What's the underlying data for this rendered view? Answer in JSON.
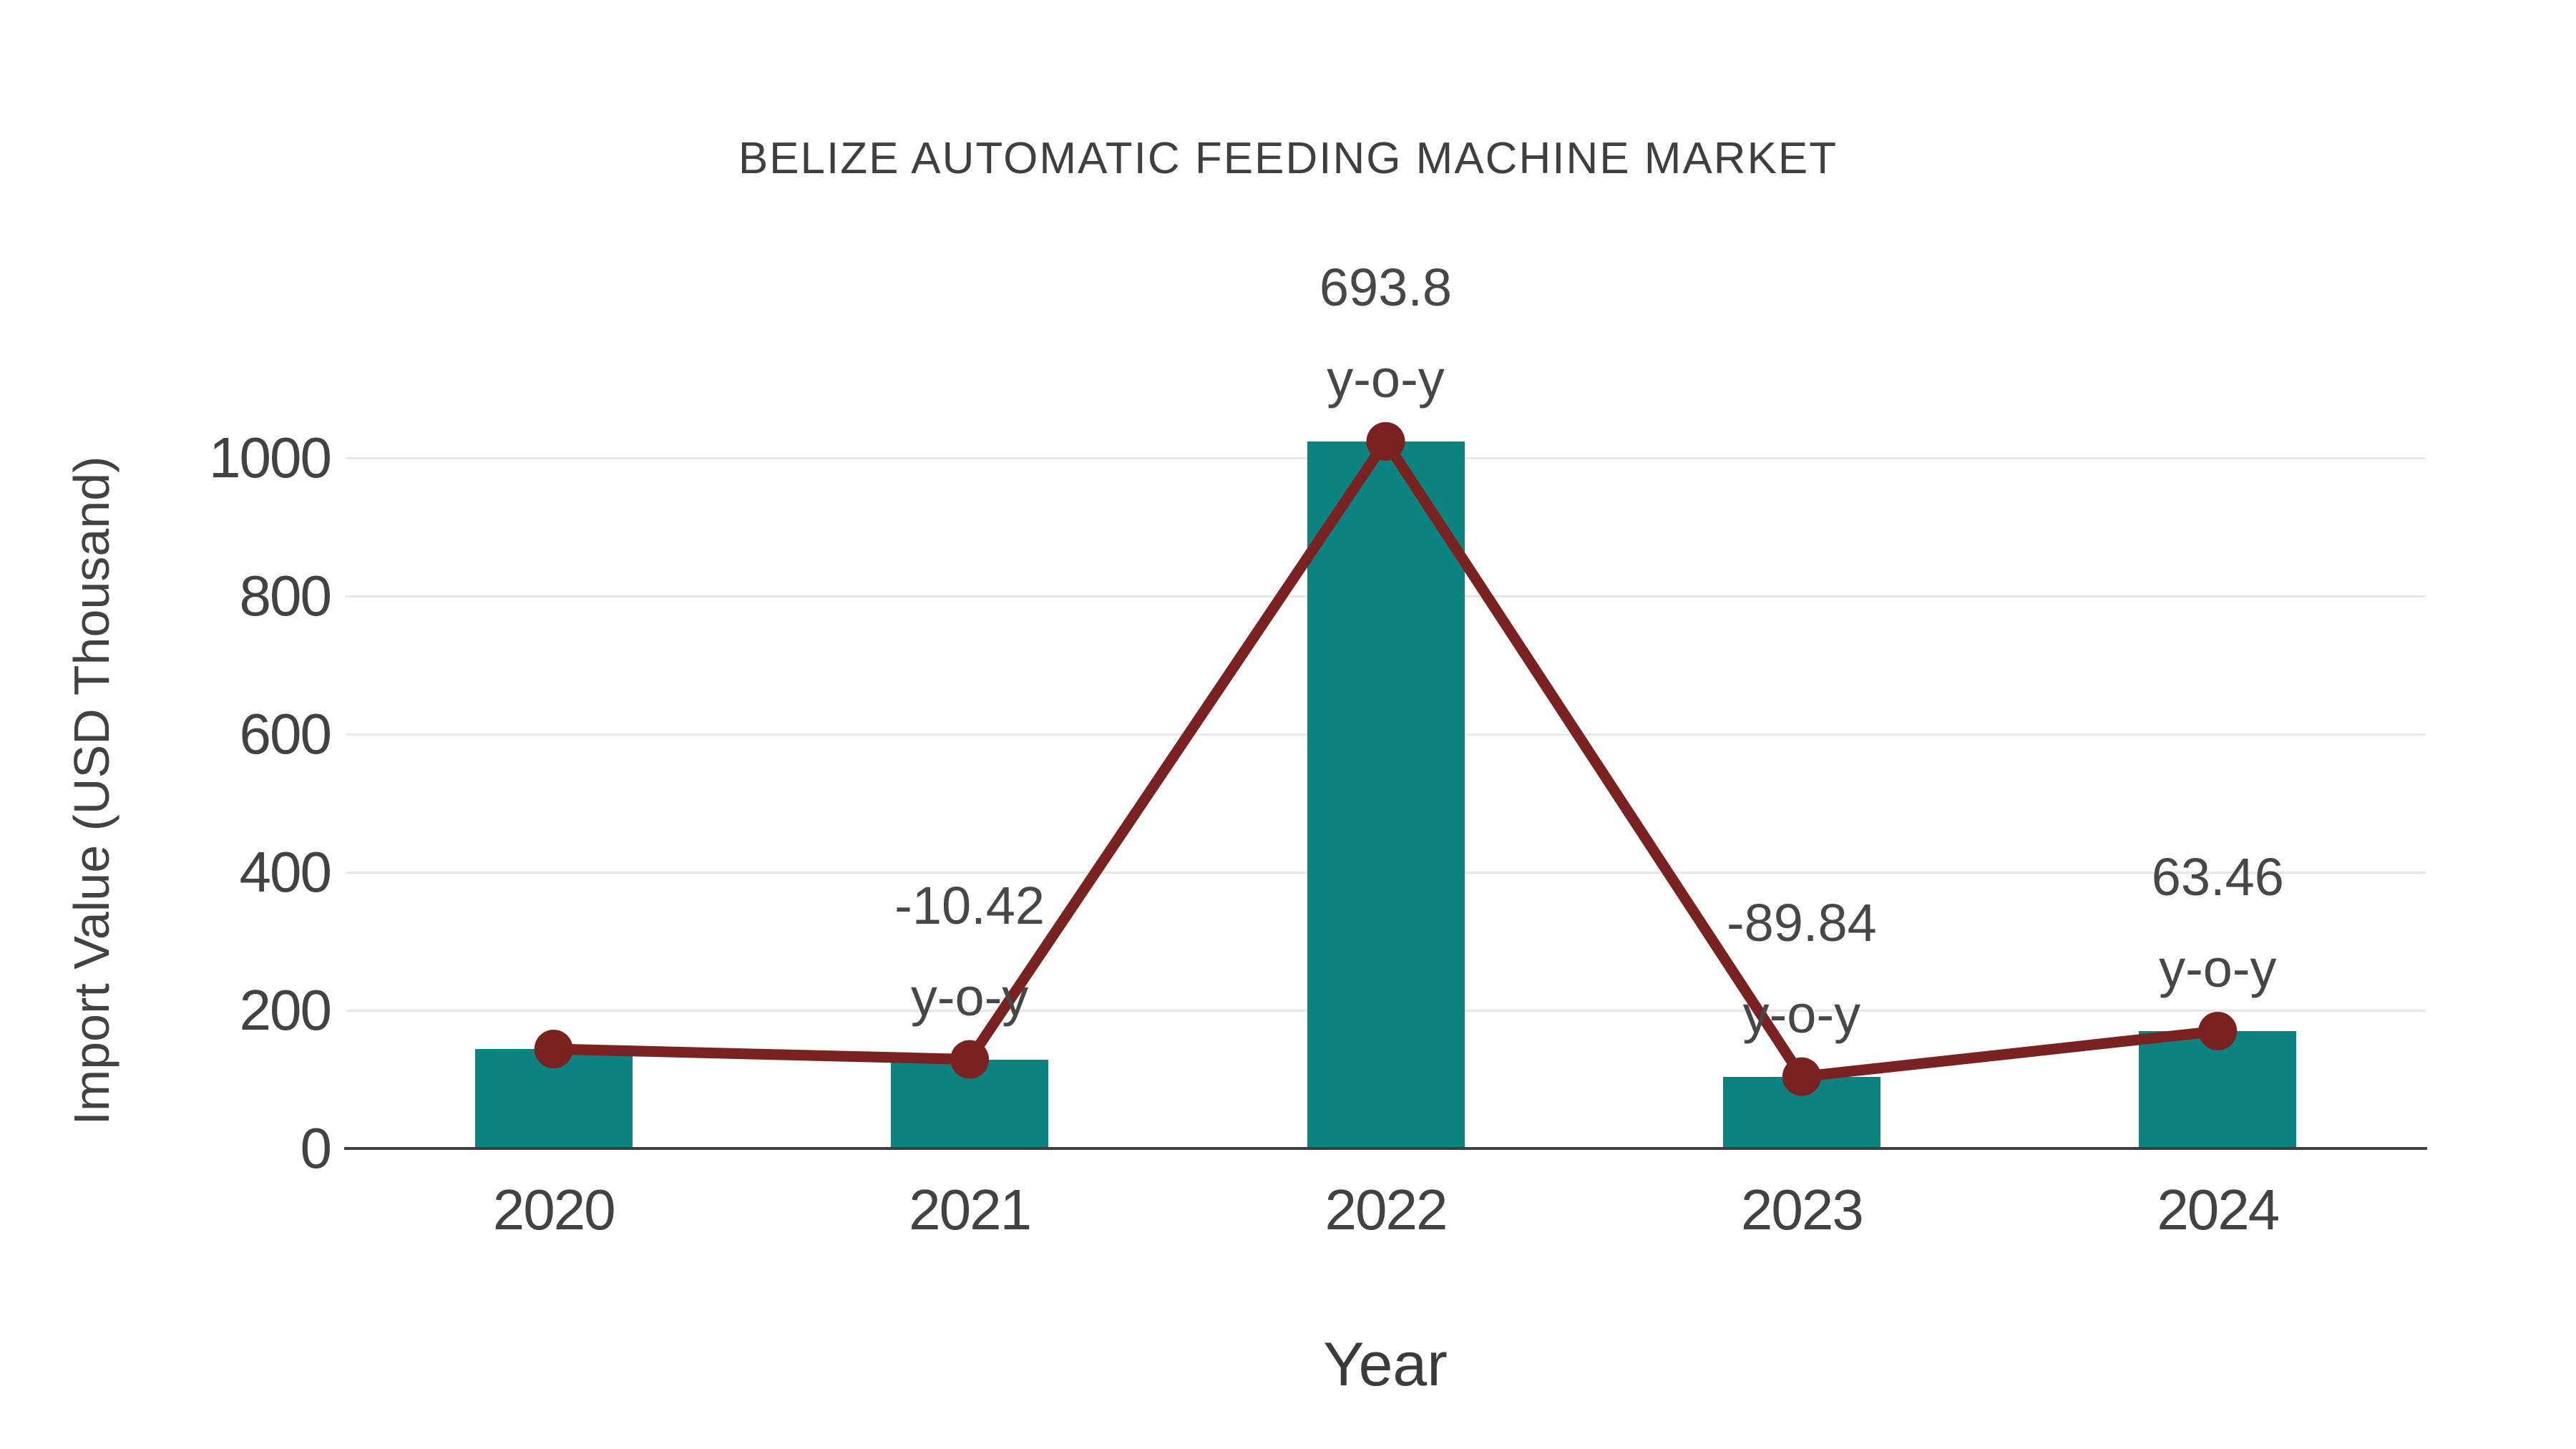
{
  "chart_data": {
    "type": "bar",
    "title": "BELIZE AUTOMATIC FEEDING MACHINE MARKET",
    "xlabel": "Year",
    "ylabel": "Import Value (USD Thousand)",
    "categories": [
      "2020",
      "2021",
      "2022",
      "2023",
      "2024"
    ],
    "series": [
      {
        "name": "Import Value (USD Thousand)",
        "type": "bar",
        "color": "#0c8381",
        "values": [
          144,
          129,
          1024,
          104,
          170
        ]
      },
      {
        "name": "y-o-y change marker line",
        "type": "line",
        "color": "#7a2222",
        "values": [
          144,
          129,
          1024,
          104,
          170
        ]
      }
    ],
    "annotations": [
      {
        "category": "2021",
        "value_label": "-10.42",
        "suffix_label": "y-o-y"
      },
      {
        "category": "2022",
        "value_label": "693.8",
        "suffix_label": "y-o-y"
      },
      {
        "category": "2023",
        "value_label": "-89.84",
        "suffix_label": "y-o-y"
      },
      {
        "category": "2024",
        "value_label": "63.46",
        "suffix_label": "y-o-y"
      }
    ],
    "yticks": [
      0,
      200,
      400,
      600,
      800,
      1000
    ],
    "ylim": [
      0,
      1080
    ],
    "grid": "horizontal-only",
    "legend_position": "none",
    "colors": {
      "bar": "#0c8381",
      "line": "#7a2222",
      "text": "#454545",
      "grid": "#e8e8e8",
      "axis": "#3f3f3f",
      "background": "#ffffff"
    }
  }
}
